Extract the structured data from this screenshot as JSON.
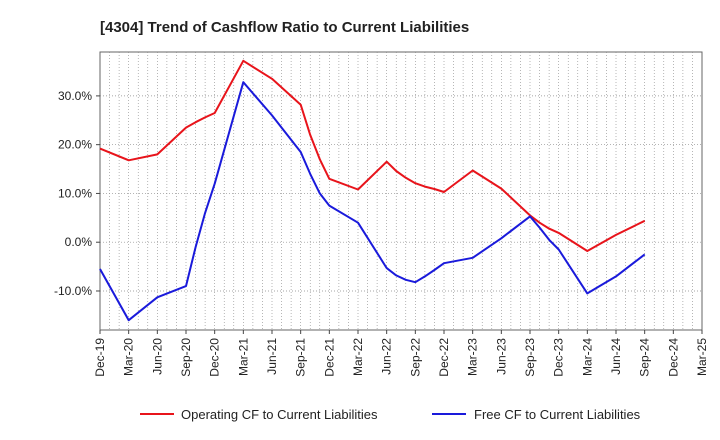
{
  "chart_data": {
    "type": "line",
    "title": "[4304]  Trend of Cashflow Ratio to Current Liabilities",
    "xlabel": "",
    "ylabel": "",
    "x_ticks": [
      "Dec-19",
      "Mar-20",
      "Jun-20",
      "Sep-20",
      "Dec-20",
      "Mar-21",
      "Jun-21",
      "Sep-21",
      "Dec-21",
      "Mar-22",
      "Jun-22",
      "Sep-22",
      "Dec-22",
      "Mar-23",
      "Jun-23",
      "Sep-23",
      "Dec-23",
      "Mar-24",
      "Jun-24",
      "Sep-24",
      "Dec-24",
      "Mar-25"
    ],
    "y_ticks": [
      30,
      20,
      10,
      0,
      -10
    ],
    "y_tick_format": "%",
    "ylim": [
      -18,
      39
    ],
    "grid": true,
    "legend_position": "bottom",
    "colors": {
      "operating": "#e8141b",
      "free": "#1a1adb",
      "grid": "#888888"
    },
    "series": [
      {
        "name": "Operating CF to Current Liabilities",
        "color": "#e8141b",
        "x": [
          "Dec-19",
          "Mar-20",
          "Jun-20",
          "Sep-20",
          "Oct-20",
          "Nov-20",
          "Dec-20",
          "Mar-21",
          "Jun-21",
          "Sep-21",
          "Oct-21",
          "Nov-21",
          "Dec-21",
          "Mar-22",
          "Jun-22",
          "Jul-22",
          "Aug-22",
          "Sep-22",
          "Oct-22",
          "Nov-22",
          "Dec-22",
          "Mar-23",
          "Jun-23",
          "Sep-23",
          "Oct-23",
          "Nov-23",
          "Dec-23",
          "Mar-24",
          "Jun-24",
          "Sep-24"
        ],
        "values": [
          19.2,
          16.8,
          18.0,
          23.5,
          24.6,
          25.6,
          26.5,
          37.2,
          33.5,
          28.2,
          22.0,
          17.0,
          13.0,
          10.8,
          16.5,
          14.6,
          13.2,
          12.1,
          11.4,
          10.9,
          10.3,
          14.7,
          11.0,
          5.5,
          4.0,
          2.8,
          1.9,
          -1.8,
          1.5,
          4.4
        ]
      },
      {
        "name": "Free CF to Current Liabilities",
        "color": "#1a1adb",
        "x": [
          "Dec-19",
          "Mar-20",
          "Jun-20",
          "Sep-20",
          "Oct-20",
          "Nov-20",
          "Dec-20",
          "Mar-21",
          "Jun-21",
          "Sep-21",
          "Oct-21",
          "Nov-21",
          "Dec-21",
          "Mar-22",
          "Jun-22",
          "Jul-22",
          "Aug-22",
          "Sep-22",
          "Oct-22",
          "Nov-22",
          "Dec-22",
          "Mar-23",
          "Jun-23",
          "Sep-23",
          "Oct-23",
          "Nov-23",
          "Dec-23",
          "Mar-24",
          "Jun-24",
          "Sep-24"
        ],
        "values": [
          -5.5,
          -16.0,
          -11.3,
          -9.0,
          -1.0,
          6.0,
          12.0,
          32.8,
          26.0,
          18.5,
          14.0,
          10.0,
          7.5,
          4.0,
          -5.3,
          -6.8,
          -7.7,
          -8.2,
          -7.0,
          -5.7,
          -4.3,
          -3.2,
          0.8,
          5.3,
          3.0,
          0.5,
          -1.5,
          -10.5,
          -7.0,
          -2.5
        ]
      }
    ]
  }
}
